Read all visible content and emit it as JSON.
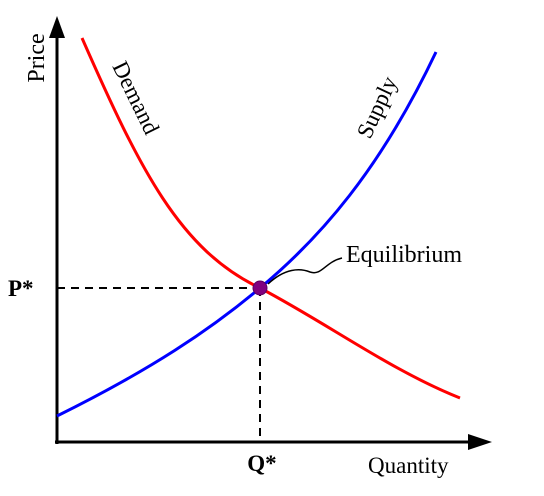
{
  "labels": {
    "y_axis": "Price",
    "x_axis": "Quantity",
    "demand": "Demand",
    "supply": "Supply",
    "equilibrium": "Equilibrium",
    "price_star": "P*",
    "quantity_star": "Q*"
  },
  "colors": {
    "demand": "#ff0000",
    "supply": "#0000ff",
    "equilibrium_point": "#800080",
    "axes": "#000000"
  }
}
